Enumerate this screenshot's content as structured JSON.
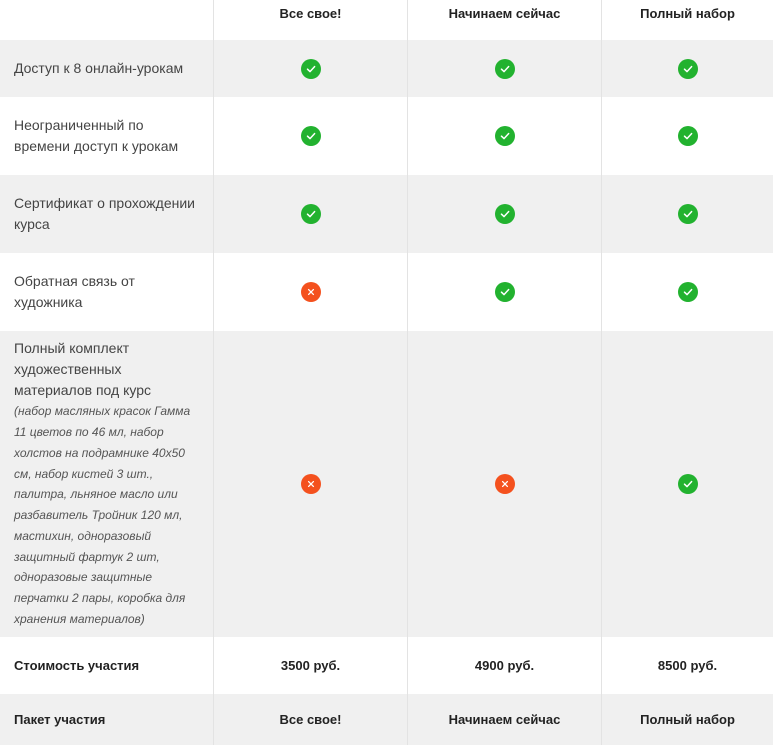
{
  "plans": [
    "Все свое!",
    "Начинаем сейчас",
    "Полный набор"
  ],
  "rows": [
    {
      "label": "Доступ к 8 онлайн-урокам",
      "values": [
        "check",
        "check",
        "check"
      ]
    },
    {
      "label": "Неограниченный по времени доступ к урокам",
      "values": [
        "check",
        "check",
        "check"
      ]
    },
    {
      "label": "Сертификат о прохождении курса",
      "values": [
        "check",
        "check",
        "check"
      ]
    },
    {
      "label": "Обратная связь от художника",
      "values": [
        "cross",
        "check",
        "check"
      ]
    },
    {
      "label": "Полный комплект художественных материалов под курс",
      "note": "(набор масляных красок Гамма 11 цветов по 46 мл, набор холстов на подрамнике 40х50 см, набор кистей 3 шт., палитра, льняное масло или разбавитель Тройник 120 мл, мастихин, одноразовый защитный фартук 2 шт, одноразовые защитные перчатки 2 пары, коробка для хранения материалов)",
      "values": [
        "cross",
        "cross",
        "check"
      ]
    }
  ],
  "price_row": {
    "label": "Стоимость участия",
    "values": [
      "3500 руб.",
      "4900 руб.",
      "8500 руб."
    ]
  },
  "package_row": {
    "label": "Пакет участия",
    "values": [
      "Все свое!",
      "Начинаем сейчас",
      "Полный набор"
    ]
  },
  "icons": {
    "check": "check-circle-icon",
    "cross": "cross-circle-icon"
  },
  "colors": {
    "check": "#22b22f",
    "cross": "#f4511e",
    "row_alt": "#f0f0f0"
  }
}
